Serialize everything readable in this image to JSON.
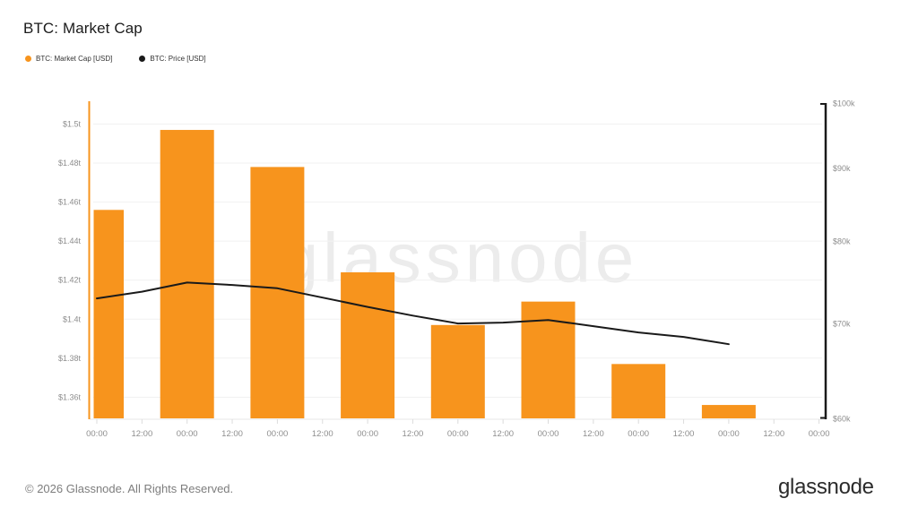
{
  "title": "BTC: Market Cap",
  "legend": {
    "items": [
      {
        "label": "BTC: Market Cap [USD]",
        "color": "#F7941D"
      },
      {
        "label": "BTC: Price [USD]",
        "color": "#1A1A1A"
      }
    ]
  },
  "watermark_text": "glassnode",
  "footer": {
    "copyright": "© 2026 Glassnode. All Rights Reserved.",
    "brand_logo_text": "glassnode"
  },
  "colors": {
    "bar": "#F7941D",
    "price_line": "#1A1A1A",
    "grid": "#F1F1F1",
    "baseline": "#E7E7E7",
    "tick": "#DCDCDC",
    "axis_label": "#8E8E8E",
    "left_axis_line": "#F7941D",
    "right_axis_line": "#1A1A1A"
  },
  "chart_data": {
    "type": "combo",
    "title": "BTC: Market Cap",
    "legend_position": "top-left",
    "grid": true,
    "x_axis": {
      "tick_labels": [
        "00:00",
        "12:00",
        "00:00",
        "12:00",
        "00:00",
        "12:00",
        "00:00",
        "12:00",
        "00:00",
        "12:00",
        "00:00",
        "12:00",
        "00:00",
        "12:00",
        "00:00",
        "12:00",
        "00:00"
      ]
    },
    "left_axis": {
      "label": "BTC: Market Cap [USD]",
      "scale": "linear",
      "unit": "USD trillions",
      "tick_labels": [
        "$1.5t",
        "$1.48t",
        "$1.46t",
        "$1.44t",
        "$1.42t",
        "$1.4t",
        "$1.38t",
        "$1.36t"
      ],
      "tick_values": [
        1.5,
        1.48,
        1.46,
        1.44,
        1.42,
        1.4,
        1.38,
        1.36
      ],
      "range": [
        1.349,
        1.511
      ]
    },
    "right_axis": {
      "label": "BTC: Price [USD]",
      "scale": "log",
      "unit": "USD thousands",
      "tick_labels": [
        "$100k",
        "$90k",
        "$80k",
        "$70k",
        "$60k"
      ],
      "tick_values": [
        100,
        90,
        80,
        70,
        60
      ],
      "range": [
        60,
        100
      ]
    },
    "series": [
      {
        "name": "BTC: Market Cap [USD]",
        "type": "bar",
        "axis": "left",
        "color": "#F7941D",
        "x_days": [
          0,
          1,
          2,
          3,
          4,
          5,
          6,
          7
        ],
        "values_trillions": [
          1.456,
          1.497,
          1.478,
          1.424,
          1.397,
          1.409,
          1.377,
          1.356
        ]
      },
      {
        "name": "BTC: Price [USD]",
        "type": "line",
        "axis": "right",
        "color": "#1A1A1A",
        "points_day_priceK": [
          [
            0,
            72.9
          ],
          [
            0.5,
            73.7
          ],
          [
            1,
            74.8
          ],
          [
            1.5,
            74.5
          ],
          [
            2,
            74.1
          ],
          [
            2.5,
            73.0
          ],
          [
            3,
            71.9
          ],
          [
            3.5,
            70.9
          ],
          [
            4,
            70.0
          ],
          [
            4.5,
            70.1
          ],
          [
            5,
            70.4
          ],
          [
            5.5,
            69.7
          ],
          [
            6,
            69.0
          ],
          [
            6.5,
            68.5
          ],
          [
            7,
            67.7
          ]
        ]
      }
    ]
  }
}
